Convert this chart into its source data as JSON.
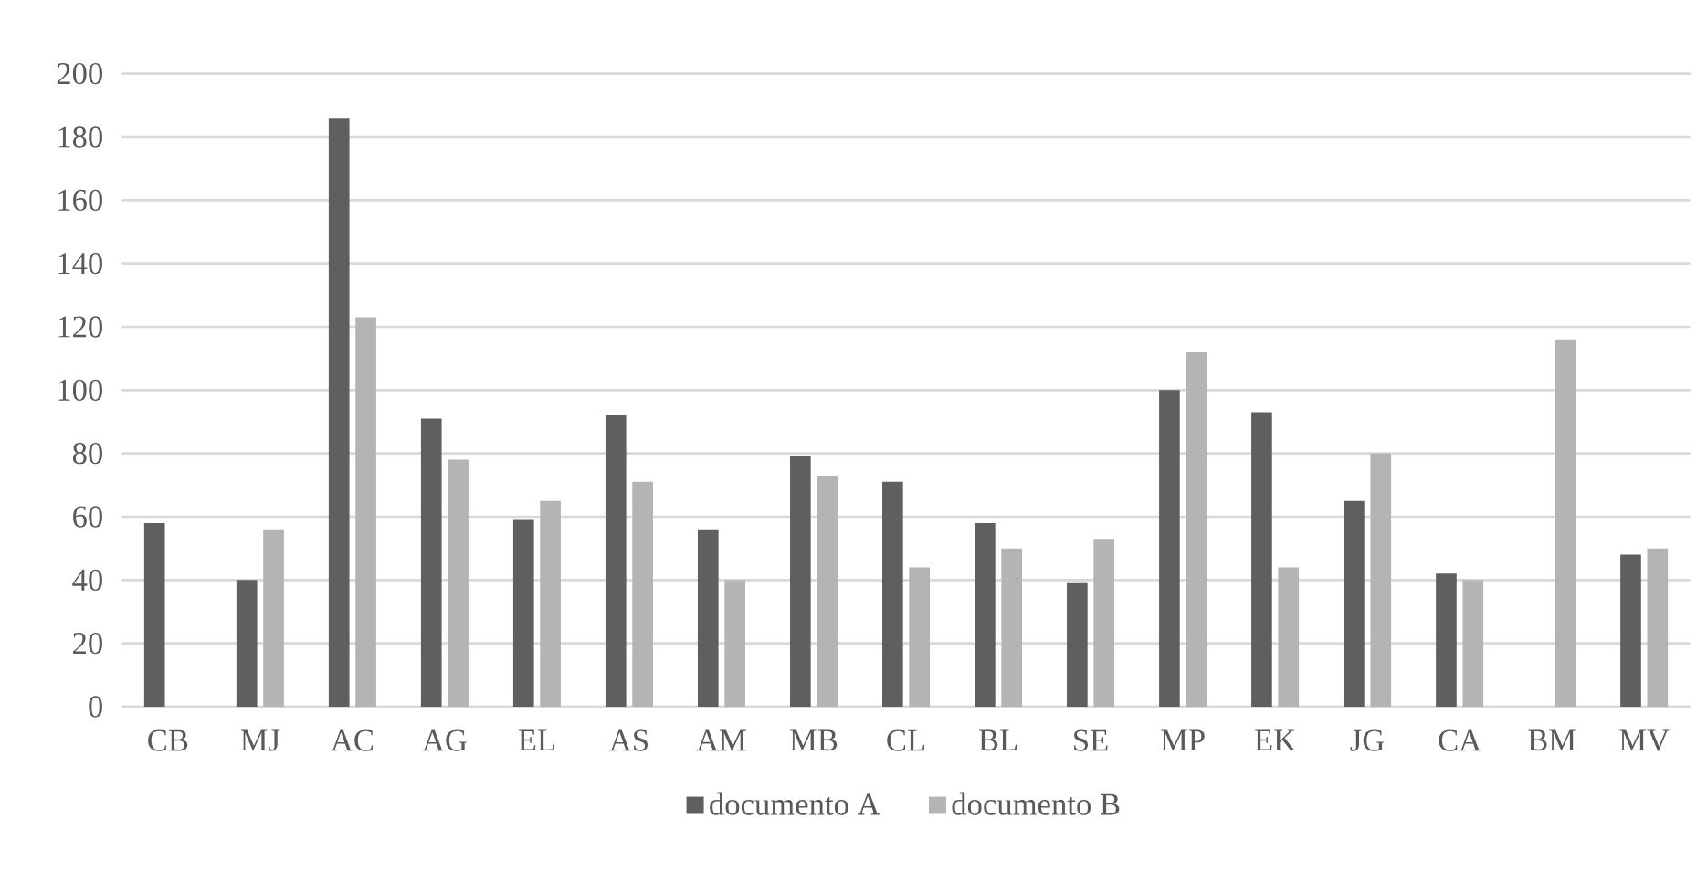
{
  "chart_data": {
    "type": "bar",
    "categories": [
      "CB",
      "MJ",
      "AC",
      "AG",
      "EL",
      "AS",
      "AM",
      "MB",
      "CL",
      "BL",
      "SE",
      "MP",
      "EK",
      "JG",
      "CA",
      "BM",
      "MV"
    ],
    "series": [
      {
        "name": "documento A",
        "color": "#5f5f5f",
        "values": [
          58,
          40,
          186,
          91,
          59,
          92,
          56,
          79,
          71,
          58,
          39,
          100,
          93,
          65,
          42,
          null,
          48
        ]
      },
      {
        "name": "documento B",
        "color": "#b4b4b4",
        "values": [
          null,
          56,
          123,
          78,
          65,
          71,
          40,
          73,
          44,
          50,
          53,
          112,
          44,
          80,
          40,
          116,
          50
        ]
      }
    ],
    "ylim": [
      0,
      200
    ],
    "yticks": [
      0,
      20,
      40,
      60,
      80,
      100,
      120,
      140,
      160,
      180,
      200
    ],
    "grid": "y",
    "legend": "bottom"
  }
}
